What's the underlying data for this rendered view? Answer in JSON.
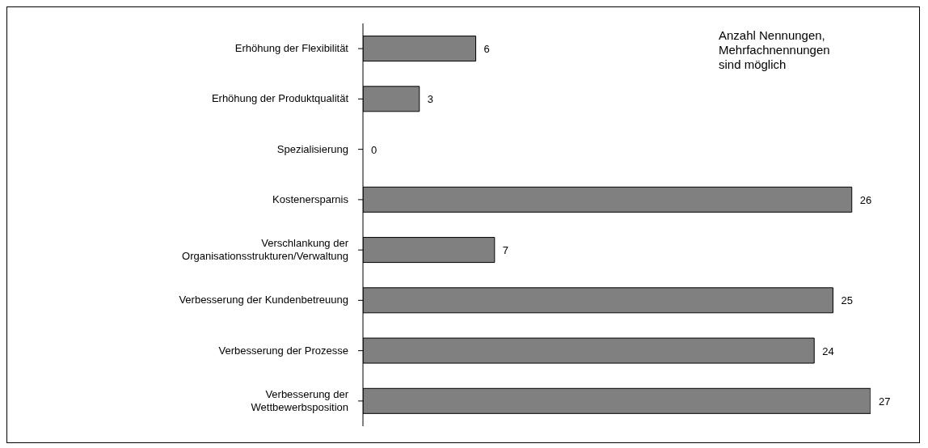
{
  "chart_data": {
    "type": "bar",
    "orientation": "horizontal",
    "categories": [
      "Erhöhung der Flexibilität",
      "Erhöhung der Produktqualität",
      "Spezialisierung",
      "Kostenersparnis",
      "Verschlankung der\nOrganisationsstrukturen/Verwaltung",
      "Verbesserung der Kundenbetreuung",
      "Verbesserung der Prozesse",
      "Verbesserung der\nWettbewerbsposition"
    ],
    "values": [
      6,
      3,
      0,
      26,
      7,
      25,
      24,
      27
    ],
    "color": "#808080",
    "data_labels": true,
    "grid": false,
    "annotations": [
      "Anzahl Nennungen,\nMehrfachnennungen\nsind möglich"
    ]
  }
}
